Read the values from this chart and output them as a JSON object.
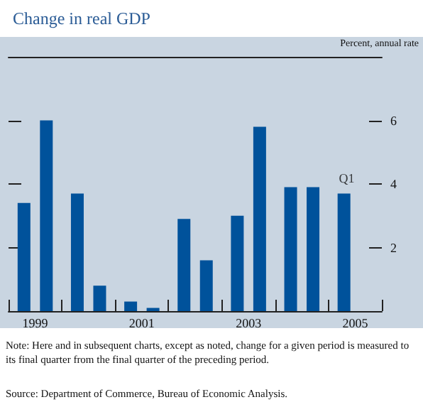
{
  "chart_data": {
    "type": "bar",
    "title": "Change in real GDP",
    "ylabel": "Percent, annual rate",
    "categories": [
      "1999",
      null,
      "2001",
      null,
      "2003",
      null,
      "2005"
    ],
    "series": [
      {
        "color": "#00529b",
        "values": [
          3.4,
          3.7,
          0.3,
          2.9,
          3.0,
          3.9,
          3.7
        ]
      },
      {
        "color": "#00529b",
        "values": [
          6.0,
          0.8,
          0.1,
          1.6,
          5.8,
          3.9,
          null
        ]
      }
    ],
    "ylim": [
      0,
      8
    ],
    "yticks": [
      2,
      4,
      6
    ],
    "grid": false,
    "annotations": [
      {
        "text": "Q1",
        "x": "2005",
        "y": 3.7
      },
      "Note: Here and in subsequent charts, except as noted, change for a given period is measured to its final quarter from the final quarter of the preceding period.",
      "Source: Department of Commerce, Bureau of Economic Analysis."
    ]
  }
}
